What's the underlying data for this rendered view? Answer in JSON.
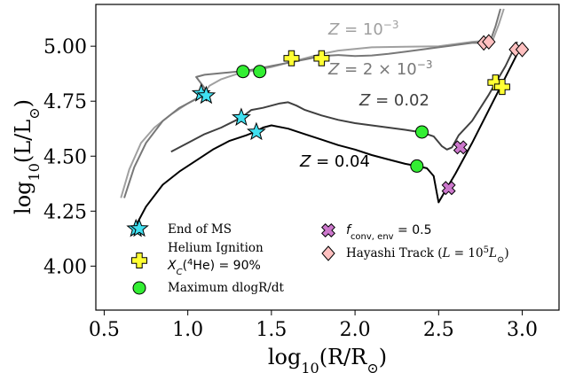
{
  "chart_data": {
    "type": "line",
    "xlabel": "log10(R/R☉)",
    "ylabel": "log10(L/L☉)",
    "xlim": [
      0.45,
      3.22
    ],
    "ylim": [
      3.8,
      5.19
    ],
    "xticks": [
      0.5,
      1.0,
      1.5,
      2.0,
      2.5,
      3.0
    ],
    "xtick_labels": [
      "0.5",
      "1.0",
      "1.5",
      "2.0",
      "2.5",
      "3.0"
    ],
    "yticks": [
      4.0,
      4.25,
      4.5,
      4.75,
      5.0
    ],
    "ytick_labels": [
      "4.00",
      "4.25",
      "4.50",
      "4.75",
      "5.00"
    ],
    "grid": false,
    "legend_position": "bottom",
    "series": [
      {
        "name": "Z = 10^-3",
        "color": "#a0a0a0",
        "points": [
          [
            0.6,
            4.31
          ],
          [
            0.65,
            4.44
          ],
          [
            0.72,
            4.56
          ],
          [
            0.8,
            4.63
          ],
          [
            0.9,
            4.69
          ],
          [
            1.0,
            4.74
          ],
          [
            1.07,
            4.77
          ],
          [
            1.1,
            4.79
          ],
          [
            1.13,
            4.82
          ],
          [
            1.2,
            4.85
          ],
          [
            1.3,
            4.875
          ],
          [
            1.4,
            4.89
          ],
          [
            1.5,
            4.905
          ],
          [
            1.6,
            4.925
          ],
          [
            1.7,
            4.945
          ],
          [
            1.8,
            4.965
          ],
          [
            1.9,
            4.98
          ],
          [
            2.1,
            4.995
          ],
          [
            2.3,
            4.998
          ],
          [
            2.5,
            5.0
          ],
          [
            2.6,
            5.01
          ],
          [
            2.7,
            5.02
          ],
          [
            2.78,
            5.025
          ],
          [
            2.82,
            5.02
          ],
          [
            2.86,
            5.1
          ],
          [
            2.89,
            5.17
          ]
        ]
      },
      {
        "name": "Z = 2 × 10^-3",
        "color": "#787878",
        "points": [
          [
            0.62,
            4.31
          ],
          [
            0.68,
            4.45
          ],
          [
            0.75,
            4.56
          ],
          [
            0.85,
            4.66
          ],
          [
            0.95,
            4.72
          ],
          [
            1.05,
            4.76
          ],
          [
            1.1,
            4.78
          ],
          [
            1.1,
            4.81
          ],
          [
            1.05,
            4.86
          ],
          [
            1.1,
            4.87
          ],
          [
            1.3,
            4.885
          ],
          [
            1.4,
            4.895
          ],
          [
            1.5,
            4.91
          ],
          [
            1.6,
            4.925
          ],
          [
            1.7,
            4.94
          ],
          [
            1.8,
            4.955
          ],
          [
            1.9,
            4.96
          ],
          [
            2.0,
            4.955
          ],
          [
            2.1,
            4.958
          ],
          [
            2.2,
            4.965
          ],
          [
            2.3,
            4.975
          ],
          [
            2.4,
            4.985
          ],
          [
            2.5,
            4.995
          ],
          [
            2.6,
            5.005
          ],
          [
            2.7,
            5.015
          ],
          [
            2.77,
            5.015
          ],
          [
            2.8,
            5.005
          ],
          [
            2.84,
            5.09
          ],
          [
            2.87,
            5.17
          ]
        ]
      },
      {
        "name": "Z = 0.02",
        "color": "#404040",
        "points": [
          [
            0.9,
            4.52
          ],
          [
            1.0,
            4.56
          ],
          [
            1.1,
            4.6
          ],
          [
            1.2,
            4.63
          ],
          [
            1.32,
            4.675
          ],
          [
            1.38,
            4.71
          ],
          [
            1.45,
            4.72
          ],
          [
            1.5,
            4.73
          ],
          [
            1.55,
            4.74
          ],
          [
            1.6,
            4.745
          ],
          [
            1.65,
            4.73
          ],
          [
            1.7,
            4.71
          ],
          [
            1.8,
            4.685
          ],
          [
            1.9,
            4.665
          ],
          [
            2.0,
            4.65
          ],
          [
            2.1,
            4.64
          ],
          [
            2.2,
            4.63
          ],
          [
            2.3,
            4.62
          ],
          [
            2.4,
            4.608
          ],
          [
            2.47,
            4.59
          ],
          [
            2.52,
            4.545
          ],
          [
            2.55,
            4.53
          ],
          [
            2.58,
            4.54
          ],
          [
            2.62,
            4.595
          ],
          [
            2.7,
            4.66
          ],
          [
            2.8,
            4.78
          ],
          [
            2.9,
            4.91
          ],
          [
            2.97,
            5.02
          ]
        ]
      },
      {
        "name": "Z = 0.04",
        "color": "#000000",
        "points": [
          [
            0.68,
            4.17
          ],
          [
            0.75,
            4.27
          ],
          [
            0.85,
            4.37
          ],
          [
            0.95,
            4.43
          ],
          [
            1.05,
            4.48
          ],
          [
            1.15,
            4.53
          ],
          [
            1.25,
            4.57
          ],
          [
            1.35,
            4.595
          ],
          [
            1.4,
            4.61
          ],
          [
            1.45,
            4.63
          ],
          [
            1.5,
            4.64
          ],
          [
            1.6,
            4.625
          ],
          [
            1.7,
            4.6
          ],
          [
            1.8,
            4.575
          ],
          [
            1.9,
            4.55
          ],
          [
            2.0,
            4.53
          ],
          [
            2.1,
            4.505
          ],
          [
            2.2,
            4.485
          ],
          [
            2.3,
            4.465
          ],
          [
            2.37,
            4.455
          ],
          [
            2.43,
            4.445
          ],
          [
            2.47,
            4.41
          ],
          [
            2.49,
            4.33
          ],
          [
            2.5,
            4.29
          ],
          [
            2.53,
            4.33
          ],
          [
            2.6,
            4.42
          ],
          [
            2.7,
            4.56
          ],
          [
            2.8,
            4.71
          ],
          [
            2.9,
            4.86
          ],
          [
            2.98,
            4.98
          ]
        ]
      }
    ],
    "markers": {
      "end_of_ms": {
        "color": "#40e0f0",
        "points": [
          [
            0.69,
            4.17
          ],
          [
            1.08,
            4.785
          ],
          [
            1.11,
            4.775
          ],
          [
            1.32,
            4.675
          ],
          [
            1.41,
            4.61
          ]
        ]
      },
      "helium_ignition": {
        "color": "#ffff33",
        "points": [
          [
            1.62,
            4.945
          ],
          [
            1.8,
            4.945
          ],
          [
            2.84,
            4.835
          ],
          [
            2.88,
            4.815
          ]
        ]
      },
      "max_dlogr_dt": {
        "color": "#33ee33",
        "points": [
          [
            1.33,
            4.885
          ],
          [
            1.43,
            4.885
          ],
          [
            2.4,
            4.61
          ],
          [
            2.37,
            4.455
          ]
        ]
      },
      "fconv": {
        "color": "#cc77cc",
        "points": [
          [
            2.63,
            4.54
          ],
          [
            2.56,
            4.355
          ]
        ]
      },
      "hayashi": {
        "color": "#ffc0c0",
        "points": [
          [
            2.77,
            5.015
          ],
          [
            2.8,
            5.02
          ],
          [
            2.96,
            4.985
          ],
          [
            3.0,
            4.985
          ]
        ]
      }
    },
    "annotations": [
      {
        "text": "Z = 10^-3",
        "color": "#a0a0a0"
      },
      {
        "text": "Z = 2 × 10^-3",
        "color": "#787878"
      },
      {
        "text": "Z = 0.02",
        "color": "#404040"
      },
      {
        "text": "Z = 0.04",
        "color": "#000000"
      }
    ],
    "legend": [
      {
        "marker": "star",
        "color": "#40e0f0",
        "label": "End of MS"
      },
      {
        "marker": "plus",
        "color": "#ffff33",
        "label": "Helium Ignition",
        "label2": "X_C(⁴He) = 90%"
      },
      {
        "marker": "circle",
        "color": "#33ee33",
        "label": "Maximum dlogR/dt"
      },
      {
        "marker": "cross",
        "color": "#cc77cc",
        "label": "f_conv,env = 0.5"
      },
      {
        "marker": "diamond",
        "color": "#ffc0c0",
        "label": "Hayashi Track (L = 10⁵ L☉)"
      }
    ]
  }
}
